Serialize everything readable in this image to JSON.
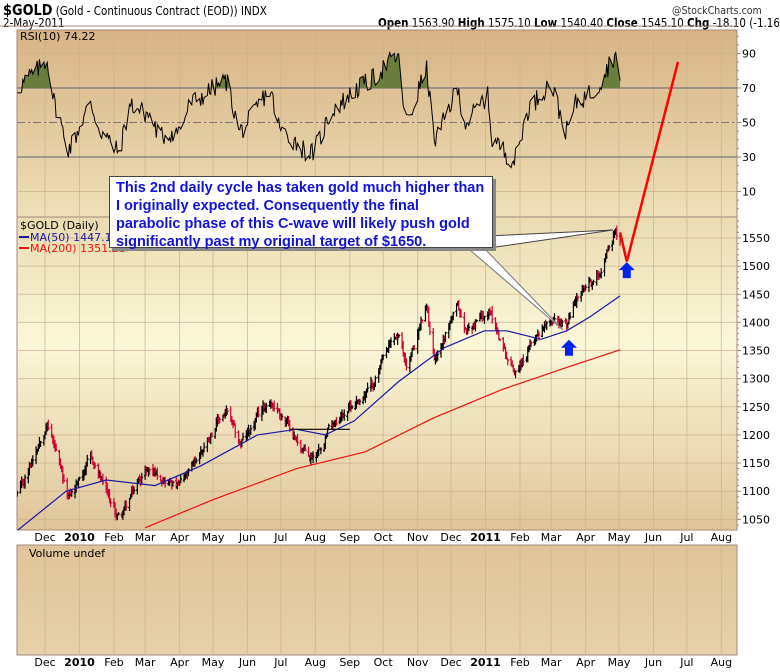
{
  "header": {
    "symbol": "$GOLD",
    "description": "(Gold - Continuous Contract (EOD))",
    "exchange": "INDX",
    "date": "2-May-2011",
    "watermark": "@StockCharts.com",
    "open_label": "Open",
    "open": "1563.90",
    "high_label": "High",
    "high": "1575.10",
    "low_label": "Low",
    "low": "1540.40",
    "close_label": "Close",
    "close": "1545.10",
    "chg_label": "Chg",
    "chg": "-18.10 (-1.16%)"
  },
  "colors": {
    "up": "#000000",
    "down": "#cc0033",
    "ma50": "#1a1aa6",
    "ma200": "#ee1111",
    "rsi_fill": "#6b7d3c",
    "note_text": "#1111dd",
    "arrow": "#0022ee",
    "projection": "#ff0000"
  },
  "rsi_panel": {
    "label": "RSI(10) 74.22",
    "ticks": [
      90,
      70,
      50,
      30,
      10
    ]
  },
  "price_panel": {
    "legend": "$GOLD (Daily)",
    "ma50_label": "MA(50) 1447.17",
    "ma200_label": "MA(200) 1351.28",
    "ticks": [
      1550,
      1500,
      1450,
      1400,
      1350,
      1300,
      1250,
      1200,
      1150,
      1100,
      1050
    ]
  },
  "volume_panel": {
    "label": "Volume undef"
  },
  "annotation": {
    "text": "This 2nd daily cycle has taken gold much higher than I originally expected. Consequently the final parabolic phase of this C-wave will likely push gold significantly past my original target of $1650."
  },
  "months": [
    {
      "d": "2009-12-01",
      "t": "Dec",
      "bold": false
    },
    {
      "d": "2010-01-01",
      "t": "2010",
      "bold": true
    },
    {
      "d": "2010-02-01",
      "t": "Feb",
      "bold": false
    },
    {
      "d": "2010-03-01",
      "t": "Mar",
      "bold": false
    },
    {
      "d": "2010-04-01",
      "t": "Apr",
      "bold": false
    },
    {
      "d": "2010-05-01",
      "t": "May",
      "bold": false
    },
    {
      "d": "2010-06-01",
      "t": "Jun",
      "bold": false
    },
    {
      "d": "2010-07-01",
      "t": "Jul",
      "bold": false
    },
    {
      "d": "2010-08-01",
      "t": "Aug",
      "bold": false
    },
    {
      "d": "2010-09-01",
      "t": "Sep",
      "bold": false
    },
    {
      "d": "2010-10-01",
      "t": "Oct",
      "bold": false
    },
    {
      "d": "2010-11-01",
      "t": "Nov",
      "bold": false
    },
    {
      "d": "2010-12-01",
      "t": "Dec",
      "bold": false
    },
    {
      "d": "2011-01-01",
      "t": "2011",
      "bold": true
    },
    {
      "d": "2011-02-01",
      "t": "Feb",
      "bold": false
    },
    {
      "d": "2011-03-01",
      "t": "Mar",
      "bold": false
    },
    {
      "d": "2011-04-01",
      "t": "Apr",
      "bold": false
    },
    {
      "d": "2011-05-01",
      "t": "May",
      "bold": false
    },
    {
      "d": "2011-06-01",
      "t": "Jun",
      "bold": false
    },
    {
      "d": "2011-07-01",
      "t": "Jul",
      "bold": false
    },
    {
      "d": "2011-08-01",
      "t": "Aug",
      "bold": false
    }
  ],
  "chart_data": {
    "type": "line",
    "title": "$GOLD (Gold - Continuous Contract (EOD)) daily with RSI(10), MA(50), MA(200)",
    "x_range": [
      "2009-11-06",
      "2011-08-20"
    ],
    "price_ylim": [
      1031,
      1587
    ],
    "rsi_ylim": [
      0,
      100
    ],
    "price_close_waypoints": [
      [
        "2009-11-06",
        1095
      ],
      [
        "2009-12-03",
        1218
      ],
      [
        "2009-12-22",
        1090
      ],
      [
        "2010-01-11",
        1155
      ],
      [
        "2010-02-05",
        1055
      ],
      [
        "2010-03-03",
        1140
      ],
      [
        "2010-03-31",
        1110
      ],
      [
        "2010-05-13",
        1240
      ],
      [
        "2010-05-25",
        1185
      ],
      [
        "2010-06-21",
        1260
      ],
      [
        "2010-07-28",
        1160
      ],
      [
        "2010-08-20",
        1230
      ],
      [
        "2010-09-14",
        1270
      ],
      [
        "2010-10-14",
        1375
      ],
      [
        "2010-10-22",
        1325
      ],
      [
        "2010-11-09",
        1420
      ],
      [
        "2010-11-16",
        1340
      ],
      [
        "2010-12-07",
        1425
      ],
      [
        "2010-12-14",
        1385
      ],
      [
        "2011-01-03",
        1420
      ],
      [
        "2011-01-27",
        1315
      ],
      [
        "2011-02-28",
        1410
      ],
      [
        "2011-03-15",
        1395
      ],
      [
        "2011-03-24",
        1445
      ],
      [
        "2011-04-08",
        1470
      ],
      [
        "2011-04-28",
        1560
      ],
      [
        "2011-05-02",
        1545.1
      ]
    ],
    "ma50": [
      [
        "2009-11-06",
        1030
      ],
      [
        "2009-12-20",
        1100
      ],
      [
        "2010-01-25",
        1120
      ],
      [
        "2010-03-10",
        1110
      ],
      [
        "2010-04-20",
        1145
      ],
      [
        "2010-06-10",
        1200
      ],
      [
        "2010-07-15",
        1210
      ],
      [
        "2010-08-10",
        1200
      ],
      [
        "2010-09-05",
        1225
      ],
      [
        "2010-10-15",
        1295
      ],
      [
        "2010-11-25",
        1355
      ],
      [
        "2010-12-31",
        1385
      ],
      [
        "2011-01-20",
        1385
      ],
      [
        "2011-02-20",
        1370
      ],
      [
        "2011-03-15",
        1385
      ],
      [
        "2011-04-05",
        1410
      ],
      [
        "2011-05-02",
        1447.17
      ]
    ],
    "ma200": [
      [
        "2010-03-01",
        1035
      ],
      [
        "2010-05-01",
        1085
      ],
      [
        "2010-07-15",
        1140
      ],
      [
        "2010-09-15",
        1170
      ],
      [
        "2010-11-15",
        1230
      ],
      [
        "2011-01-15",
        1280
      ],
      [
        "2011-03-15",
        1320
      ],
      [
        "2011-05-02",
        1351.28
      ]
    ],
    "rsi": [
      [
        "2009-11-06",
        70
      ],
      [
        "2009-11-20",
        78
      ],
      [
        "2009-12-03",
        86
      ],
      [
        "2009-12-10",
        60
      ],
      [
        "2009-12-22",
        35
      ],
      [
        "2010-01-11",
        60
      ],
      [
        "2010-01-20",
        45
      ],
      [
        "2010-02-05",
        33
      ],
      [
        "2010-02-16",
        60
      ],
      [
        "2010-03-03",
        55
      ],
      [
        "2010-03-15",
        42
      ],
      [
        "2010-03-31",
        45
      ],
      [
        "2010-04-12",
        62
      ],
      [
        "2010-05-13",
        74
      ],
      [
        "2010-05-25",
        45
      ],
      [
        "2010-06-21",
        68
      ],
      [
        "2010-07-01",
        45
      ],
      [
        "2010-07-28",
        32
      ],
      [
        "2010-08-20",
        60
      ],
      [
        "2010-09-14",
        72
      ],
      [
        "2010-10-14",
        88
      ],
      [
        "2010-10-22",
        50
      ],
      [
        "2010-11-09",
        80
      ],
      [
        "2010-11-16",
        40
      ],
      [
        "2010-12-07",
        68
      ],
      [
        "2010-12-14",
        50
      ],
      [
        "2011-01-03",
        65
      ],
      [
        "2011-01-07",
        40
      ],
      [
        "2011-01-27",
        28
      ],
      [
        "2011-02-10",
        60
      ],
      [
        "2011-02-28",
        72
      ],
      [
        "2011-03-15",
        45
      ],
      [
        "2011-03-24",
        62
      ],
      [
        "2011-04-08",
        68
      ],
      [
        "2011-04-28",
        89
      ],
      [
        "2011-05-02",
        74.22
      ]
    ],
    "support_line": [
      [
        "2010-07-10",
        1210
      ],
      [
        "2010-09-01",
        1210
      ]
    ],
    "projection": [
      [
        "2011-05-02",
        1560
      ],
      [
        "2011-05-08",
        1508
      ],
      [
        "2011-06-23",
        1863
      ]
    ],
    "arrows": [
      [
        "2011-03-17",
        1355
      ],
      [
        "2011-05-08",
        1493
      ]
    ]
  }
}
